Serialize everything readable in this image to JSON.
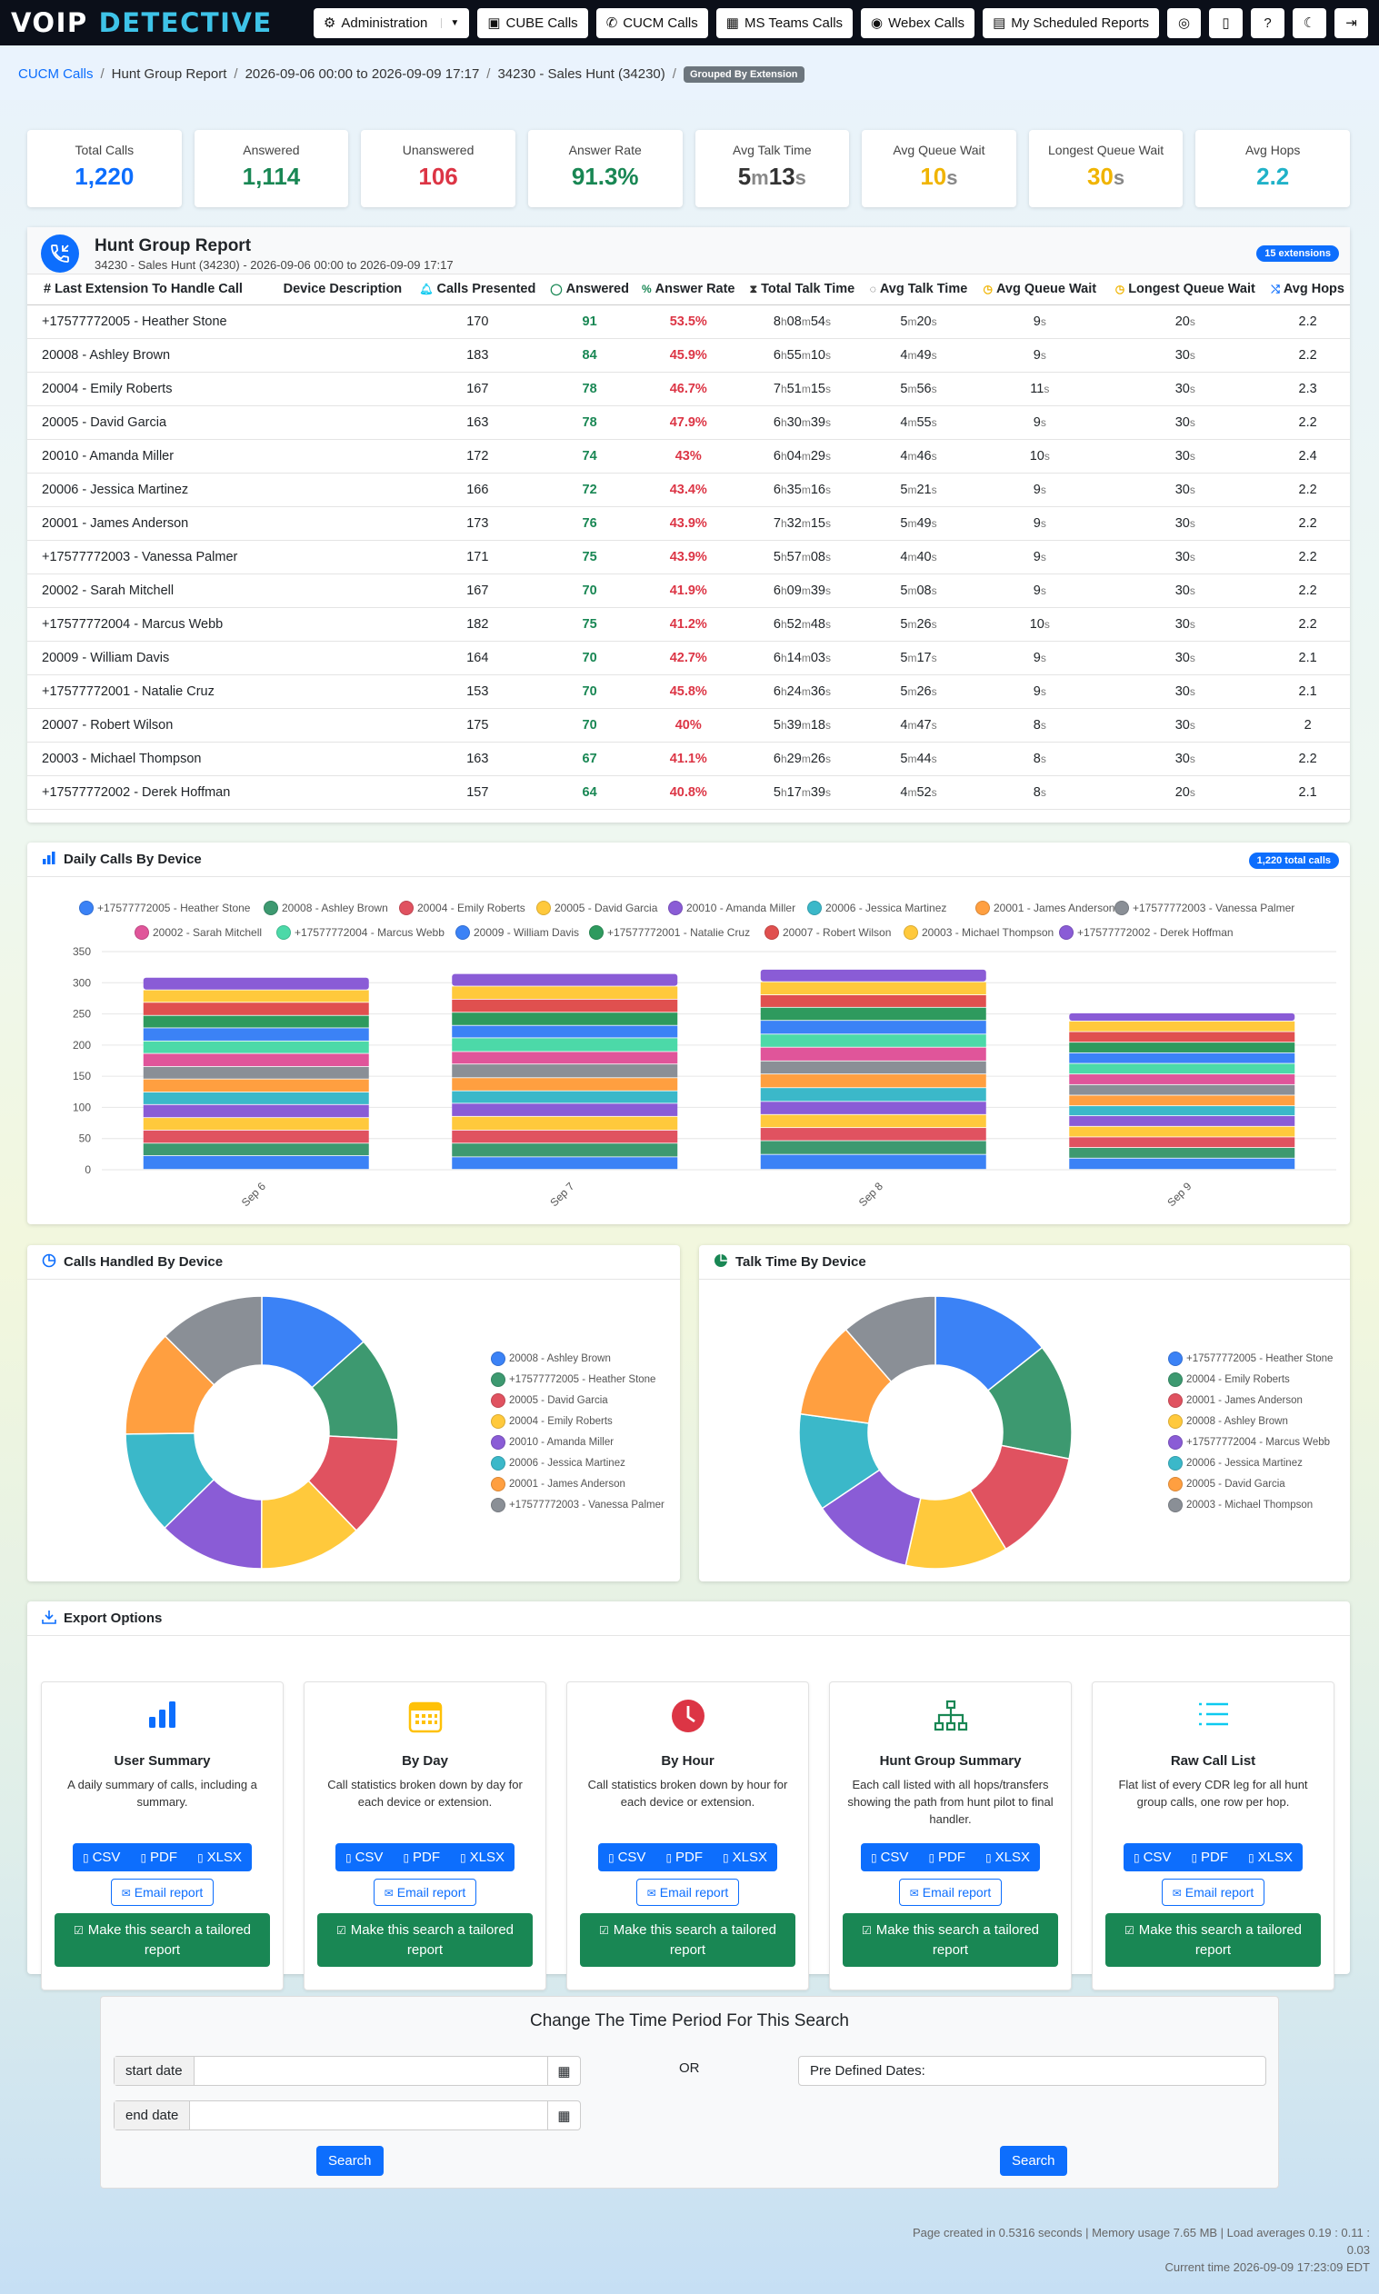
{
  "nav": {
    "logo_part1": "VOIP",
    "logo_part2": "DETECTIVE",
    "buttons": [
      {
        "icon": "gear-icon",
        "label": "Administration"
      },
      {
        "icon": "cube-icon",
        "label": "CUBE Calls"
      },
      {
        "icon": "phone-icon",
        "label": "CUCM Calls"
      },
      {
        "icon": "teams-icon",
        "label": "MS Teams Calls"
      },
      {
        "icon": "webex-icon",
        "label": "Webex Calls"
      },
      {
        "icon": "calendar-icon",
        "label": "My Scheduled Reports"
      }
    ]
  },
  "breadcrumb": {
    "items": [
      "CUCM Calls",
      "Hunt Group Report",
      "2026-09-06 00:00 to 2026-09-09 17:17",
      "34230 - Sales Hunt (34230)"
    ],
    "badge": "Grouped By Extension"
  },
  "stats": [
    {
      "label": "Total Calls",
      "value": "1,220",
      "color": "#0d6efd"
    },
    {
      "label": "Answered",
      "value": "1,114",
      "color": "#198754"
    },
    {
      "label": "Unanswered",
      "value": "106",
      "color": "#dc3545"
    },
    {
      "label": "Answer Rate",
      "value": "91.3%",
      "color": "#198754"
    },
    {
      "label": "Avg Talk Time",
      "value": "5m13s",
      "color": "#333333"
    },
    {
      "label": "Avg Queue Wait",
      "value": "10s",
      "color": "#f0b400"
    },
    {
      "label": "Longest Queue Wait",
      "value": "30s",
      "color": "#f0b400"
    },
    {
      "label": "Avg Hops",
      "value": "2.2",
      "color": "#20b2c8"
    }
  ],
  "hunt_report": {
    "title": "Hunt Group Report",
    "subtitle": "34230 - Sales Hunt (34230) - 2026-09-06 00:00 to 2026-09-09 17:17",
    "badge": "15 extensions",
    "columns": [
      "# Last Extension To Handle Call",
      "Device Description",
      "Calls Presented",
      "Answered",
      "Answer Rate",
      "Total Talk Time",
      "Avg Talk Time",
      "Avg Queue Wait",
      "Longest Queue Wait",
      "Avg Hops"
    ],
    "rows": [
      [
        "+17577772005 - Heather Stone",
        "",
        "170",
        "91",
        "53.5%",
        "8h08m54s",
        "5m20s",
        "9s",
        "20s",
        "2.2"
      ],
      [
        "20008 - Ashley Brown",
        "",
        "183",
        "84",
        "45.9%",
        "6h55m10s",
        "4m49s",
        "9s",
        "30s",
        "2.2"
      ],
      [
        "20004 - Emily Roberts",
        "",
        "167",
        "78",
        "46.7%",
        "7h51m15s",
        "5m56s",
        "11s",
        "30s",
        "2.3"
      ],
      [
        "20005 - David Garcia",
        "",
        "163",
        "78",
        "47.9%",
        "6h30m39s",
        "4m55s",
        "9s",
        "30s",
        "2.2"
      ],
      [
        "20010 - Amanda Miller",
        "",
        "172",
        "74",
        "43%",
        "6h04m29s",
        "4m46s",
        "10s",
        "30s",
        "2.4"
      ],
      [
        "20006 - Jessica Martinez",
        "",
        "166",
        "72",
        "43.4%",
        "6h35m16s",
        "5m21s",
        "9s",
        "30s",
        "2.2"
      ],
      [
        "20001 - James Anderson",
        "",
        "173",
        "76",
        "43.9%",
        "7h32m15s",
        "5m49s",
        "9s",
        "30s",
        "2.2"
      ],
      [
        "+17577772003 - Vanessa Palmer",
        "",
        "171",
        "75",
        "43.9%",
        "5h57m08s",
        "4m40s",
        "9s",
        "30s",
        "2.2"
      ],
      [
        "20002 - Sarah Mitchell",
        "",
        "167",
        "70",
        "41.9%",
        "6h09m39s",
        "5m08s",
        "9s",
        "30s",
        "2.2"
      ],
      [
        "+17577772004 - Marcus Webb",
        "",
        "182",
        "75",
        "41.2%",
        "6h52m48s",
        "5m26s",
        "10s",
        "30s",
        "2.2"
      ],
      [
        "20009 - William Davis",
        "",
        "164",
        "70",
        "42.7%",
        "6h14m03s",
        "5m17s",
        "9s",
        "30s",
        "2.1"
      ],
      [
        "+17577772001 - Natalie Cruz",
        "",
        "153",
        "70",
        "45.8%",
        "6h24m36s",
        "5m26s",
        "9s",
        "30s",
        "2.1"
      ],
      [
        "20007 - Robert Wilson",
        "",
        "175",
        "70",
        "40%",
        "5h39m18s",
        "4m47s",
        "8s",
        "30s",
        "2"
      ],
      [
        "20003 - Michael Thompson",
        "",
        "163",
        "67",
        "41.1%",
        "6h29m26s",
        "5m44s",
        "8s",
        "30s",
        "2.2"
      ],
      [
        "+17577772002 - Derek Hoffman",
        "",
        "157",
        "64",
        "40.8%",
        "5h17m39s",
        "4m52s",
        "8s",
        "20s",
        "2.1"
      ]
    ]
  },
  "daily_chart": {
    "title": "Daily Calls By Device",
    "badge": "1,220 total calls"
  },
  "calls_pie_title": "Calls Handled By Device",
  "talk_pie_title": "Talk Time By Device",
  "chart_data": [
    {
      "type": "bar",
      "stacked": true,
      "categories": [
        "Sep 6",
        "Sep 7",
        "Sep 8",
        "Sep 9"
      ],
      "ylim": [
        0,
        350
      ],
      "yticks": [
        0,
        50,
        100,
        150,
        200,
        250,
        300,
        350
      ],
      "legend_position": "top",
      "totals": [
        308,
        314,
        321,
        255
      ],
      "series": [
        {
          "name": "+17577772005 - Heather Stone",
          "color": "#3b82f6",
          "values": [
            22,
            20,
            24,
            18
          ]
        },
        {
          "name": "20008 - Ashley Brown",
          "color": "#3d9970",
          "values": [
            20,
            22,
            22,
            17
          ]
        },
        {
          "name": "20004 - Emily Roberts",
          "color": "#e05260",
          "values": [
            21,
            21,
            21,
            17
          ]
        },
        {
          "name": "20005 - David Garcia",
          "color": "#ffc93c",
          "values": [
            20,
            22,
            21,
            17
          ]
        },
        {
          "name": "20010 - Amanda Miller",
          "color": "#8a5cd6",
          "values": [
            21,
            21,
            21,
            17
          ]
        },
        {
          "name": "20006 - Jessica Martinez",
          "color": "#3bb8c9",
          "values": [
            20,
            20,
            22,
            16
          ]
        },
        {
          "name": "20001 - James Anderson",
          "color": "#ff9f40",
          "values": [
            21,
            21,
            22,
            17
          ]
        },
        {
          "name": "+17577772003 - Vanessa Palmer",
          "color": "#8a8f96",
          "values": [
            20,
            22,
            21,
            17
          ]
        },
        {
          "name": "20002 - Sarah Mitchell",
          "color": "#e0559a",
          "values": [
            21,
            20,
            22,
            17
          ]
        },
        {
          "name": "+17577772004 - Marcus Webb",
          "color": "#4cd9a8",
          "values": [
            20,
            22,
            21,
            17
          ]
        },
        {
          "name": "20009 - William Davis",
          "color": "#3b82f6",
          "values": [
            21,
            20,
            22,
            17
          ]
        },
        {
          "name": "+17577772001 - Natalie Cruz",
          "color": "#2e9a5e",
          "values": [
            20,
            21,
            21,
            17
          ]
        },
        {
          "name": "20007 - Robert Wilson",
          "color": "#e0504f",
          "values": [
            21,
            21,
            20,
            17
          ]
        },
        {
          "name": "20003 - Michael Thompson",
          "color": "#ffc93c",
          "values": [
            20,
            21,
            21,
            17
          ]
        },
        {
          "name": "+17577772002 - Derek Hoffman",
          "color": "#8a5cd6",
          "values": [
            20,
            20,
            20,
            13
          ]
        }
      ]
    },
    {
      "type": "pie",
      "donut": true,
      "labels": [
        "20008 - Ashley Brown",
        "+17577772005 - Heather Stone",
        "20005 - David Garcia",
        "20004 - Emily Roberts",
        "20010 - Amanda Miller",
        "20006 - Jessica Martinez",
        "20001 - James Anderson",
        "+17577772003 - Vanessa Palmer"
      ],
      "values": [
        183,
        170,
        163,
        167,
        172,
        166,
        173,
        171
      ],
      "colors": [
        "#3b82f6",
        "#3d9970",
        "#e05260",
        "#ffc93c",
        "#8a5cd6",
        "#3bb8c9",
        "#ff9f40",
        "#8a8f96"
      ],
      "legend_position": "right"
    },
    {
      "type": "pie",
      "donut": true,
      "labels": [
        "+17577772005 - Heather Stone",
        "20004 - Emily Roberts",
        "20001 - James Anderson",
        "20008 - Ashley Brown",
        "+17577772004 - Marcus Webb",
        "20006 - Jessica Martinez",
        "20005 - David Garcia",
        "20003 - Michael Thompson"
      ],
      "values": [
        488.9,
        471.3,
        452.3,
        415.2,
        412.8,
        395.3,
        390.7,
        389.4
      ],
      "colors": [
        "#3b82f6",
        "#3d9970",
        "#e05260",
        "#ffc93c",
        "#8a5cd6",
        "#3bb8c9",
        "#ff9f40",
        "#8a8f96"
      ],
      "legend_position": "right"
    }
  ],
  "export": {
    "title": "Export Options",
    "cards": [
      {
        "icon": "bar-chart-icon",
        "color": "#0d6efd",
        "title": "User Summary",
        "desc": "A daily summary of calls, including a summary."
      },
      {
        "icon": "calendar-icon",
        "color": "#ffc107",
        "title": "By Day",
        "desc": "Call statistics broken down by day for each device or extension."
      },
      {
        "icon": "clock-icon",
        "color": "#dc3545",
        "title": "By Hour",
        "desc": "Call statistics broken down by hour for each device or extension."
      },
      {
        "icon": "sitemap-icon",
        "color": "#198754",
        "title": "Hunt Group Summary",
        "desc": "Each call listed with all hops/transfers showing the path from hunt pilot to final handler."
      },
      {
        "icon": "list-icon",
        "color": "#0dcaf0",
        "title": "Raw Call List",
        "desc": "Flat list of every CDR leg for all hunt group calls, one row per hop."
      }
    ],
    "csv": "CSV",
    "pdf": "PDF",
    "xlsx": "XLSX",
    "email": "Email report",
    "tailor": "Make this search a tailored report"
  },
  "time_period": {
    "title": "Change The Time Period For This Search",
    "start_label": "start date",
    "end_label": "end date",
    "or": "OR",
    "predefined": "Pre Defined Dates:",
    "search": "Search"
  },
  "footer": {
    "line1": "Page created in 0.5316 seconds | Memory usage 7.65 MB | Load averages 0.19 : 0.11 : 0.03",
    "line2": "Current time 2026-09-09 17:23:09 EDT"
  }
}
